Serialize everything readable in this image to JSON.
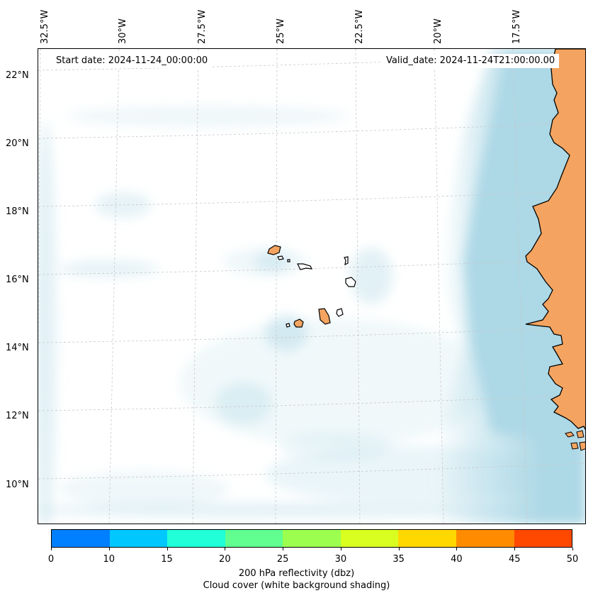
{
  "header": {
    "start_date": "Start date: 2024-11-24_00:00:00",
    "valid_date": "Valid_date: 2024-11-24T21:00:00.00"
  },
  "axes": {
    "lon_labels": [
      "32.5°W",
      "30°W",
      "27.5°W",
      "25°W",
      "22.5°W",
      "20°W",
      "17.5°W"
    ],
    "lat_labels": [
      "22°N",
      "20°N",
      "18°N",
      "16°N",
      "14°N",
      "12°N",
      "10°N"
    ]
  },
  "colorbar": {
    "ticks": [
      "0",
      "10",
      "15",
      "20",
      "25",
      "30",
      "35",
      "40",
      "45",
      "50"
    ],
    "colors": [
      "#0080ff",
      "#00c8ff",
      "#20ffd8",
      "#60ff90",
      "#9cff50",
      "#d8ff20",
      "#ffd800",
      "#ff8c00",
      "#ff4800"
    ],
    "label_line1": "200 hPa reflectivity (dbz)",
    "label_line2": "Cloud cover (white background shading)"
  },
  "colors": {
    "land": "#f4a460",
    "ocean_cloud": "#add8e6",
    "grid": "#cccccc"
  }
}
